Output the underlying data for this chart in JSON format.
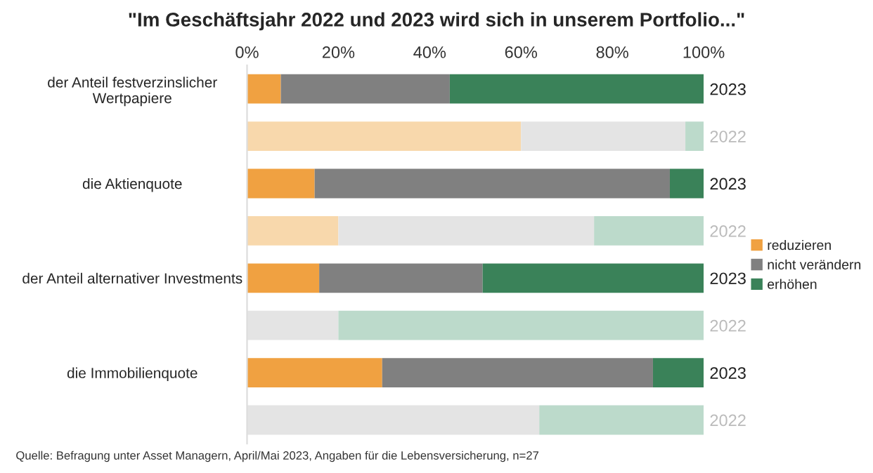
{
  "chart_data": {
    "type": "bar",
    "orientation": "horizontal",
    "stacked": true,
    "title": "\"Im Geschäftsjahr 2022 und 2023 wird sich in unserem Portfolio...\"",
    "categories": [
      "der Anteil festverzinslicher\nWertpapiere",
      null,
      "die Aktienquote",
      null,
      "der Anteil alternativer Investments",
      null,
      "die Immobilienquote",
      null
    ],
    "y2_categories": [
      "2023",
      "2022",
      "2023",
      "2022",
      "2023",
      "2022",
      "2023",
      "2022"
    ],
    "series": [
      {
        "name": "reduzieren",
        "color": "#f0a141",
        "colors": [
          "#f0a141",
          "#f8d8ac",
          "#f0a141",
          "#f8d8ac",
          "#f0a141",
          "#f8d8ac",
          "#f0a141",
          "#f8d8ac"
        ],
        "values": [
          7.4,
          60,
          14.8,
          20,
          15.8,
          0,
          29.6,
          0
        ]
      },
      {
        "name": "nicht verändern",
        "color": "#808080",
        "colors": [
          "#808080",
          "#e4e4e4",
          "#808080",
          "#e4e4e4",
          "#808080",
          "#e4e4e4",
          "#808080",
          "#e4e4e4"
        ],
        "values": [
          37,
          36,
          77.8,
          56,
          35.8,
          20,
          59.3,
          64
        ]
      },
      {
        "name": "erhöhen",
        "color": "#3a8259",
        "colors": [
          "#3a8259",
          "#bcdacb",
          "#3a8259",
          "#bcdacb",
          "#3a8259",
          "#bcdacb",
          "#3a8259",
          "#bcdacb"
        ],
        "values": [
          55.6,
          4,
          7.4,
          24,
          48.4,
          80,
          11.1,
          36
        ]
      }
    ],
    "xlim": [
      0,
      100
    ],
    "xticks": [
      {
        "value": 0,
        "label": "0%"
      },
      {
        "value": 20,
        "label": "20%"
      },
      {
        "value": 40,
        "label": "40%"
      },
      {
        "value": 60,
        "label": "60%"
      },
      {
        "value": 80,
        "label": "80%"
      },
      {
        "value": 100,
        "label": "100%"
      }
    ],
    "legend": "right",
    "grid": false,
    "annotations": [
      "Quelle: Befragung unter Asset Managern, April/Mai 2023, Angaben für die Lebensversicherung, n=27"
    ]
  }
}
